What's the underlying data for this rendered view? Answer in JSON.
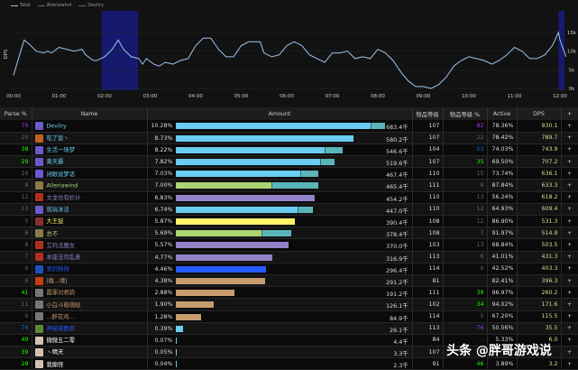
{
  "legend": [
    "Total",
    "Alleriawind",
    "Devilry"
  ],
  "chart_data": {
    "type": "line",
    "ylabel": "DPS",
    "yticks": [
      "0k",
      "5k",
      "10k",
      "15k"
    ],
    "ylim": [
      0,
      17
    ],
    "xticks": [
      "00:00",
      "01:00",
      "02:00",
      "03:00",
      "04:00",
      "05:00",
      "06:00",
      "07:00",
      "08:00",
      "09:00",
      "10:00",
      "11:00",
      "12:00"
    ],
    "highlight_ranges": [
      [
        "01:56",
        "02:44"
      ],
      [
        "11:58",
        "12:10"
      ]
    ],
    "series": [
      {
        "name": "Total",
        "color": "#9cc6f0",
        "points": [
          [
            "00:00",
            3.5
          ],
          [
            "00:08",
            9
          ],
          [
            "00:14",
            13
          ],
          [
            "00:20",
            12
          ],
          [
            "00:30",
            10
          ],
          [
            "00:40",
            9.5
          ],
          [
            "00:45",
            10
          ],
          [
            "00:50",
            9.5
          ],
          [
            "01:00",
            11
          ],
          [
            "01:10",
            10.5
          ],
          [
            "01:20",
            10
          ],
          [
            "01:30",
            10.5
          ],
          [
            "01:35",
            9
          ],
          [
            "01:45",
            7.5
          ],
          [
            "01:50",
            7.5
          ],
          [
            "02:00",
            8.5
          ],
          [
            "02:10",
            10.5
          ],
          [
            "02:18",
            13
          ],
          [
            "02:25",
            10.5
          ],
          [
            "02:35",
            8.5
          ],
          [
            "02:45",
            8
          ],
          [
            "02:50",
            6.5
          ],
          [
            "02:55",
            8
          ],
          [
            "03:05",
            6.5
          ],
          [
            "03:12",
            6
          ],
          [
            "03:20",
            7
          ],
          [
            "03:30",
            6.5
          ],
          [
            "03:40",
            7.5
          ],
          [
            "03:50",
            8
          ],
          [
            "04:00",
            11.5
          ],
          [
            "04:10",
            13.5
          ],
          [
            "04:20",
            13.5
          ],
          [
            "04:30",
            10.5
          ],
          [
            "04:40",
            8.5
          ],
          [
            "04:50",
            8.5
          ],
          [
            "05:00",
            11.5
          ],
          [
            "05:10",
            12.5
          ],
          [
            "05:25",
            12.5
          ],
          [
            "05:30",
            9.5
          ],
          [
            "05:40",
            8.5
          ],
          [
            "05:50",
            9
          ],
          [
            "06:00",
            11.5
          ],
          [
            "06:10",
            12.5
          ],
          [
            "06:20",
            11.5
          ],
          [
            "06:30",
            9
          ],
          [
            "06:40",
            8
          ],
          [
            "06:50",
            7
          ],
          [
            "07:00",
            9.5
          ],
          [
            "07:10",
            9.5
          ],
          [
            "07:20",
            10
          ],
          [
            "07:30",
            8
          ],
          [
            "07:40",
            8.5
          ],
          [
            "07:50",
            8
          ],
          [
            "08:00",
            10.5
          ],
          [
            "08:10",
            9.5
          ],
          [
            "08:20",
            7.5
          ],
          [
            "08:30",
            4.5
          ],
          [
            "08:40",
            2
          ],
          [
            "08:50",
            0.5
          ],
          [
            "09:00",
            0.5
          ],
          [
            "09:10",
            0
          ],
          [
            "09:20",
            1
          ],
          [
            "09:30",
            3
          ],
          [
            "09:40",
            6
          ],
          [
            "09:50",
            7.5
          ],
          [
            "10:00",
            8.5
          ],
          [
            "10:10",
            8
          ],
          [
            "10:20",
            7.5
          ],
          [
            "10:30",
            6.5
          ],
          [
            "10:40",
            7.5
          ],
          [
            "10:50",
            9
          ],
          [
            "11:00",
            11
          ],
          [
            "11:10",
            10
          ],
          [
            "11:20",
            8
          ],
          [
            "11:30",
            8
          ],
          [
            "11:40",
            9
          ],
          [
            "11:50",
            11.5
          ],
          [
            "11:58",
            15
          ],
          [
            "12:00",
            13
          ],
          [
            "12:08",
            8.5
          ]
        ]
      }
    ]
  },
  "table": {
    "headers": {
      "parse": "Parse %",
      "name": "Name",
      "amount": "Amount",
      "ilvl": "物品等级",
      "ilvl_pct": "物品等级 %",
      "active": "Active",
      "dps": "DPS",
      "plus": "+"
    },
    "rows": [
      {
        "parse": "79",
        "parse_color": "#a335ee",
        "name": "Devilry",
        "name_color": "#69ccf0",
        "icon": "#6a5acd",
        "pct": "10.28%",
        "pct_value": 10.28,
        "bar_colors": [
          "#69ccf0",
          "#5bb5b8"
        ],
        "split": 0.93,
        "amount": "683.4千",
        "ilvl": "107",
        "ilvl_pct": "82",
        "ilvl_pct_color": "#a335ee",
        "active": "78.36%",
        "dps": "930.1"
      },
      {
        "parse": "20",
        "parse_color": "#666",
        "name": "吃了饭丶",
        "name_color": "#69ccf0",
        "icon": "#c06020",
        "pct": "8.73%",
        "pct_value": 8.73,
        "bar_colors": [
          "#69ccf0"
        ],
        "split": 1,
        "amount": "580.2千",
        "ilvl": "107",
        "ilvl_pct": "22",
        "ilvl_pct_color": "#666",
        "active": "78.42%",
        "dps": "789.7"
      },
      {
        "parse": "38",
        "parse_color": "#1eff00",
        "name": "生活一场梦",
        "name_color": "#69ccf0",
        "icon": "#6a5acd",
        "pct": "8.22%",
        "pct_value": 8.22,
        "bar_colors": [
          "#69ccf0",
          "#5bb5b8"
        ],
        "split": 0.89,
        "amount": "546.6千",
        "ilvl": "104",
        "ilvl_pct": "53",
        "ilvl_pct_color": "#0070dd",
        "active": "74.03%",
        "dps": "743.9"
      },
      {
        "parse": "29",
        "parse_color": "#1eff00",
        "name": "黄天霸",
        "name_color": "#69ccf0",
        "icon": "#6a5acd",
        "pct": "7.82%",
        "pct_value": 7.82,
        "bar_colors": [
          "#69ccf0",
          "#5bb5b8"
        ],
        "split": 0.91,
        "amount": "519.6千",
        "ilvl": "107",
        "ilvl_pct": "35",
        "ilvl_pct_color": "#1eff00",
        "active": "69.50%",
        "dps": "707.2"
      },
      {
        "parse": "16",
        "parse_color": "#666",
        "name": "闭眼说梦话",
        "name_color": "#69ccf0",
        "icon": "#6a5acd",
        "pct": "7.03%",
        "pct_value": 7.03,
        "bar_colors": [
          "#69ccf0",
          "#5bb5b8"
        ],
        "split": 0.87,
        "amount": "467.4千",
        "ilvl": "110",
        "ilvl_pct": "15",
        "ilvl_pct_color": "#666",
        "active": "73.74%",
        "dps": "636.1"
      },
      {
        "parse": "8",
        "parse_color": "#666",
        "name": "Alleriawind",
        "name_color": "#abd473",
        "icon": "#8a7a4a",
        "pct": "7.00%",
        "pct_value": 7.0,
        "bar_colors": [
          "#abd473",
          "#5bb5b8"
        ],
        "split": 0.67,
        "amount": "465.4千",
        "ilvl": "111",
        "ilvl_pct": "8",
        "ilvl_pct_color": "#666",
        "active": "87.84%",
        "dps": "633.3"
      },
      {
        "parse": "12",
        "parse_color": "#666",
        "name": "文龙也有妙计",
        "name_color": "#9482c9",
        "icon": "#b03020",
        "pct": "6.83%",
        "pct_value": 6.83,
        "bar_colors": [
          "#9482c9"
        ],
        "split": 1,
        "amount": "454.2千",
        "ilvl": "110",
        "ilvl_pct": "13",
        "ilvl_pct_color": "#666",
        "active": "56.24%",
        "dps": "618.2"
      },
      {
        "parse": "13",
        "parse_color": "#666",
        "name": "就玩冰法",
        "name_color": "#69ccf0",
        "icon": "#6a5acd",
        "pct": "6.74%",
        "pct_value": 6.74,
        "bar_colors": [
          "#69ccf0",
          "#5bb5b8"
        ],
        "split": 0.89,
        "amount": "447.0千",
        "ilvl": "110",
        "ilvl_pct": "12",
        "ilvl_pct_color": "#666",
        "active": "64.93%",
        "dps": "609.4"
      },
      {
        "parse": "5",
        "parse_color": "#666",
        "name": "大王捉",
        "name_color": "#fff569",
        "icon": "#8a3030",
        "pct": "5.87%",
        "pct_value": 5.87,
        "bar_colors": [
          "#fff569"
        ],
        "split": 1,
        "amount": "390.4千",
        "ilvl": "108",
        "ilvl_pct": "12",
        "ilvl_pct_color": "#666",
        "active": "86.90%",
        "dps": "531.3"
      },
      {
        "parse": "6",
        "parse_color": "#666",
        "name": "总不",
        "name_color": "#abd473",
        "icon": "#8a7a4a",
        "pct": "5.69%",
        "pct_value": 5.69,
        "bar_colors": [
          "#abd473",
          "#5bb5b8"
        ],
        "split": 0.74,
        "amount": "378.4千",
        "ilvl": "108",
        "ilvl_pct": "7",
        "ilvl_pct_color": "#666",
        "active": "91.97%",
        "dps": "514.9"
      },
      {
        "parse": "8",
        "parse_color": "#666",
        "name": "艾玛法魔女",
        "name_color": "#9482c9",
        "icon": "#b03020",
        "pct": "5.57%",
        "pct_value": 5.57,
        "bar_colors": [
          "#9482c9"
        ],
        "split": 1,
        "amount": "370.0千",
        "ilvl": "103",
        "ilvl_pct": "13",
        "ilvl_pct_color": "#666",
        "active": "68.84%",
        "dps": "503.5"
      },
      {
        "parse": "7",
        "parse_color": "#666",
        "name": "本座法司乱来",
        "name_color": "#9482c9",
        "icon": "#b03020",
        "pct": "4.77%",
        "pct_value": 4.77,
        "bar_colors": [
          "#9482c9"
        ],
        "split": 1,
        "amount": "316.9千",
        "ilvl": "113",
        "ilvl_pct": "6",
        "ilvl_pct_color": "#666",
        "active": "41.01%",
        "dps": "431.3"
      },
      {
        "parse": "6",
        "parse_color": "#666",
        "name": "瓷剑狗侍",
        "name_color": "#2459ff",
        "icon": "#2050c0",
        "pct": "4.46%",
        "pct_value": 4.46,
        "bar_colors": [
          "#2459ff"
        ],
        "split": 1,
        "amount": "296.4千",
        "ilvl": "114",
        "ilvl_pct": "6",
        "ilvl_pct_color": "#666",
        "active": "42.52%",
        "dps": "403.3"
      },
      {
        "parse": "6",
        "parse_color": "#666",
        "name": "|瘋...魂|",
        "name_color": "#c79c6e",
        "icon": "#c04010",
        "pct": "4.38%",
        "pct_value": 4.38,
        "bar_colors": [
          "#c79c6e"
        ],
        "split": 1,
        "amount": "291.2千",
        "ilvl": "81",
        "ilvl_pct": "-",
        "ilvl_pct_color": "#666",
        "active": "82.41%",
        "dps": "396.3"
      },
      {
        "parse": "41",
        "parse_color": "#1eff00",
        "name": "霞罪对君韵",
        "name_color": "#c79c6e",
        "icon": "#777",
        "pct": "2.88%",
        "pct_value": 2.88,
        "bar_colors": [
          "#c79c6e"
        ],
        "split": 1,
        "amount": "191.2千",
        "ilvl": "111",
        "ilvl_pct": "39",
        "ilvl_pct_color": "#1eff00",
        "active": "96.97%",
        "dps": "260.2"
      },
      {
        "parse": "11",
        "parse_color": "#666",
        "name": "小白斗萌萌哒",
        "name_color": "#c79c6e",
        "icon": "#777",
        "pct": "1.90%",
        "pct_value": 1.9,
        "bar_colors": [
          "#c79c6e"
        ],
        "split": 1,
        "amount": "126.1千",
        "ilvl": "102",
        "ilvl_pct": "34",
        "ilvl_pct_color": "#1eff00",
        "active": "94.02%",
        "dps": "171.6"
      },
      {
        "parse": "6",
        "parse_color": "#666",
        "name": "...醉花鸡...",
        "name_color": "#c79c6e",
        "icon": "#777",
        "pct": "1.28%",
        "pct_value": 1.28,
        "bar_colors": [
          "#c79c6e"
        ],
        "split": 1,
        "amount": "84.9千",
        "ilvl": "114",
        "ilvl_pct": "5",
        "ilvl_pct_color": "#666",
        "active": "67.20%",
        "dps": "115.5"
      },
      {
        "parse": "74",
        "parse_color": "#0070dd",
        "name": "神秘骑鹿斯",
        "name_color": "#2459ff",
        "icon": "#5a8a3a",
        "pct": "0.39%",
        "pct_value": 0.39,
        "bar_colors": [
          "#69ccf0"
        ],
        "split": 1,
        "amount": "26.1千",
        "ilvl": "113",
        "ilvl_pct": "76",
        "ilvl_pct_color": "#a335ee",
        "active": "50.56%",
        "dps": "35.5"
      },
      {
        "parse": "49",
        "parse_color": "#1eff00",
        "name": "微微五二零",
        "name_color": "#ffffff",
        "icon": "#d8c0b0",
        "pct": "0.07%",
        "pct_value": 0.07,
        "bar_colors": [
          "#69ccf0"
        ],
        "split": 1,
        "amount": "4.4千",
        "ilvl": "84",
        "ilvl_pct": "-",
        "ilvl_pct_color": "#666",
        "active": "5.33%",
        "dps": "6.0"
      },
      {
        "parse": "39",
        "parse_color": "#1eff00",
        "name": "丶晴天",
        "name_color": "#ffffff",
        "icon": "#d8c0b0",
        "pct": "0.05%",
        "pct_value": 0.05,
        "bar_colors": [
          "#69ccf0"
        ],
        "split": 1,
        "amount": "3.3千",
        "ilvl": "107",
        "ilvl_pct": "",
        "ilvl_pct_color": "#666",
        "active": "",
        "dps": ""
      },
      {
        "parse": "29",
        "parse_color": "#1eff00",
        "name": "我煽怪",
        "name_color": "#ffffff",
        "icon": "#d8c0b0",
        "pct": "0.04%",
        "pct_value": 0.04,
        "bar_colors": [
          "#69ccf0"
        ],
        "split": 1,
        "amount": "2.3千",
        "ilvl": "91",
        "ilvl_pct": "46",
        "ilvl_pct_color": "#1eff00",
        "active": "3.89%",
        "dps": "3.2"
      }
    ]
  },
  "watermark": "头条 @胖哥游戏说"
}
